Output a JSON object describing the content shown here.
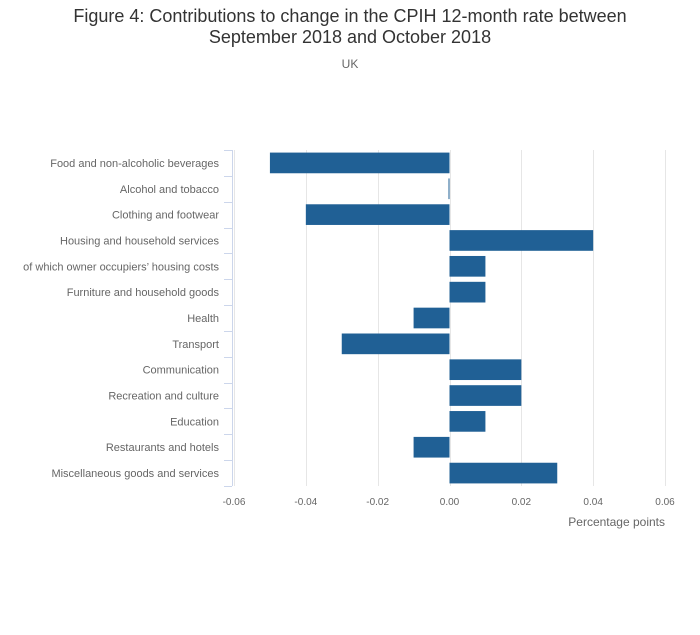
{
  "title_line1": "Figure 4: Contributions to change in the CPIH 12-month rate between",
  "title_line2": "September 2018 and October 2018",
  "subtitle": "UK",
  "colors": {
    "bar": "#206095",
    "grid": "#e6e6e6",
    "axis": "#ccd6eb",
    "label": "#666666",
    "title": "#333333"
  },
  "chart_data": {
    "type": "bar",
    "orientation": "horizontal",
    "title": "Figure 4: Contributions to change in the CPIH 12-month rate between September 2018 and October 2018",
    "subtitle": "UK",
    "categories": [
      "Food and non-alcoholic beverages",
      "Alcohol and tobacco",
      "Clothing and footwear",
      "Housing and household services",
      "of which owner occupiers’ housing costs",
      "Furniture and household goods",
      "Health",
      "Transport",
      "Communication",
      "Recreation and culture",
      "Education",
      "Restaurants and hotels",
      "Miscellaneous goods and services"
    ],
    "values": [
      -0.05,
      0.0,
      -0.04,
      0.04,
      0.01,
      0.01,
      -0.01,
      -0.03,
      0.02,
      0.02,
      0.01,
      -0.01,
      0.03
    ],
    "xlabel": "Percentage points",
    "ylabel": "",
    "xlim": [
      -0.06,
      0.06
    ],
    "xticks": [
      -0.06,
      -0.04,
      -0.02,
      0.0,
      0.02,
      0.04,
      0.06
    ],
    "xtick_labels": [
      "-0.06",
      "-0.04",
      "-0.02",
      "0.00",
      "0.02",
      "0.04",
      "0.06"
    ],
    "grid": true,
    "legend": "none"
  }
}
